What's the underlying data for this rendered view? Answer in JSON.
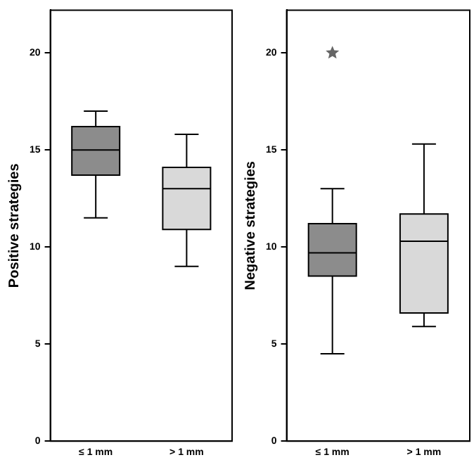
{
  "chart_data": [
    {
      "type": "box",
      "ylabel": "Positive strategies",
      "categories": [
        "≤ 1 mm",
        "> 1 mm"
      ],
      "colors": [
        "#8c8c8c",
        "#d9d9d9"
      ],
      "ylim": [
        0,
        22.2
      ],
      "yticks": [
        0,
        5,
        10,
        15,
        20
      ],
      "grid": false,
      "legend": false,
      "boxes": [
        {
          "low": 11.5,
          "q1": 13.7,
          "median": 15,
          "q3": 16.2,
          "high": 17
        },
        {
          "low": 9,
          "q1": 10.9,
          "median": 13,
          "q3": 14.1,
          "high": 15.8
        }
      ]
    },
    {
      "type": "box",
      "ylabel": "Negative strategies",
      "categories": [
        "≤ 1 mm",
        "> 1 mm"
      ],
      "colors": [
        "#8c8c8c",
        "#d9d9d9"
      ],
      "ylim": [
        0,
        22.2
      ],
      "yticks": [
        0,
        5,
        10,
        15,
        20
      ],
      "grid": false,
      "legend": false,
      "marker": "star",
      "boxes": [
        {
          "low": 4.5,
          "q1": 8.5,
          "median": 9.7,
          "q3": 11.2,
          "high": 13,
          "outliers": [
            20
          ]
        },
        {
          "low": 5.9,
          "q1": 6.6,
          "median": 10.3,
          "q3": 11.7,
          "high": 15.3
        }
      ]
    }
  ]
}
